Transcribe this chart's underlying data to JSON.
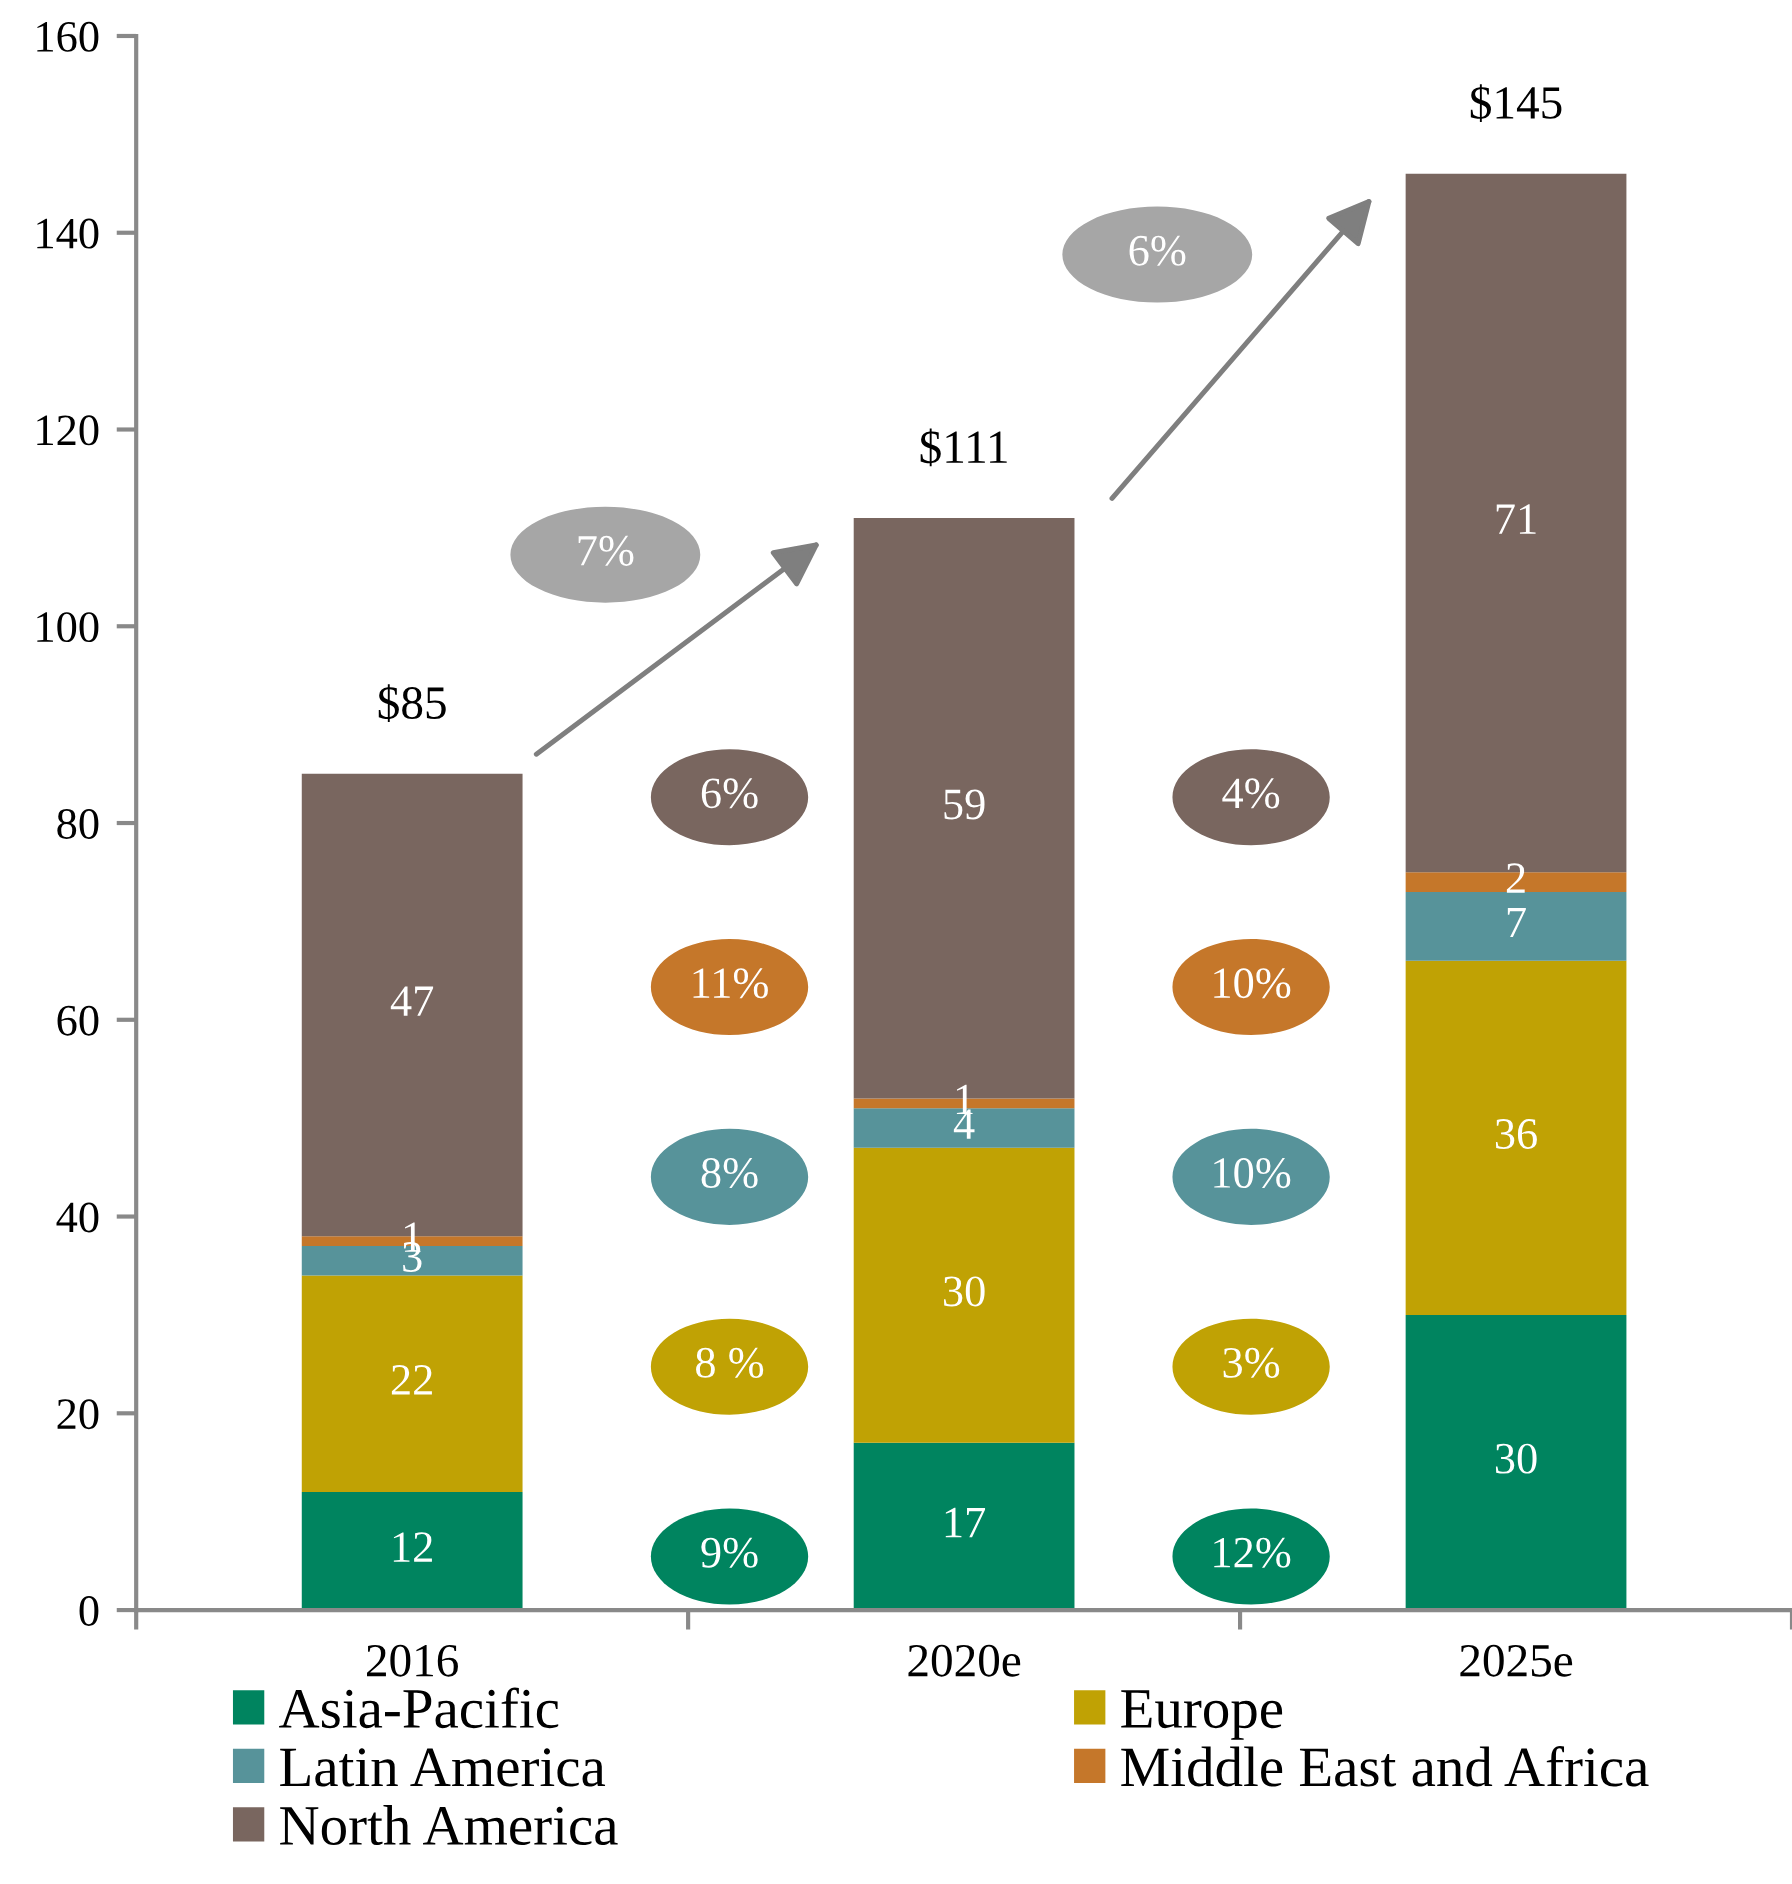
{
  "chart_data": {
    "type": "bar",
    "stacked": true,
    "categories": [
      "2016",
      "2020e",
      "2025e"
    ],
    "series": [
      {
        "name": "Asia-Pacific",
        "color": "#00845f",
        "values": [
          12,
          17,
          30
        ]
      },
      {
        "name": "Europe",
        "color": "#c0a204",
        "values": [
          22,
          30,
          36
        ]
      },
      {
        "name": "Latin America",
        "color": "#57939a",
        "values": [
          3,
          4,
          7
        ]
      },
      {
        "name": "Middle East and Africa",
        "color": "#c5772a",
        "values": [
          1,
          1,
          2
        ]
      },
      {
        "name": "North America",
        "color": "#79665f",
        "values": [
          47,
          59,
          71
        ]
      }
    ],
    "ylim": [
      0,
      160
    ],
    "yticks": [
      0,
      20,
      40,
      60,
      80,
      100,
      120,
      140,
      160
    ],
    "data_labels": true,
    "totals": [
      "$85",
      "$111",
      "$145"
    ],
    "annotations": [
      "9%",
      "8 %",
      "8%",
      "11%",
      "6%",
      "12%",
      "3%",
      "10%",
      "10%",
      "4%",
      "7%",
      "6%"
    ],
    "legend": "bottom"
  }
}
